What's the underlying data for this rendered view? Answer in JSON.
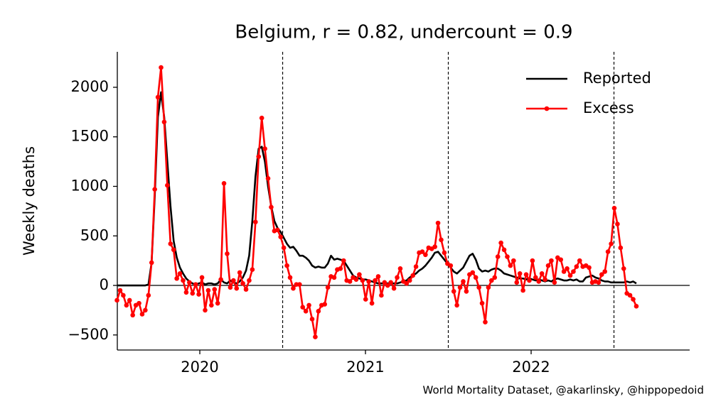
{
  "chart_data": {
    "type": "line",
    "title": "Belgium, r = 0.82, undercount = 0.9",
    "ylabel": "Weekly deaths",
    "footer": "World Mortality Dataset, @akarlinsky, @hippopedoid",
    "legend": "upper right",
    "xlim": [
      2019.502,
      2022.957
    ],
    "xticks": [
      2020,
      2021,
      2022
    ],
    "ylim": [
      -652,
      2358
    ],
    "yticks": [
      {
        "value": -500,
        "label": "−500"
      },
      0,
      500,
      1000,
      1500,
      2000
    ],
    "vlines": [
      2020.5,
      2021.5,
      2022.5
    ],
    "hline": 0,
    "x": [
      2019.5,
      2019.519,
      2019.538,
      2019.557,
      2019.576,
      2019.595,
      2019.614,
      2019.633,
      2019.652,
      2019.671,
      2019.69,
      2019.709,
      2019.728,
      2019.747,
      2019.766,
      2019.785,
      2019.804,
      2019.823,
      2019.842,
      2019.861,
      2019.88,
      2019.899,
      2019.918,
      2019.937,
      2019.956,
      2019.975,
      2019.994,
      2020.013,
      2020.032,
      2020.051,
      2020.07,
      2020.089,
      2020.108,
      2020.127,
      2020.146,
      2020.165,
      2020.184,
      2020.203,
      2020.222,
      2020.241,
      2020.26,
      2020.279,
      2020.298,
      2020.317,
      2020.336,
      2020.355,
      2020.374,
      2020.393,
      2020.412,
      2020.431,
      2020.45,
      2020.469,
      2020.488,
      2020.507,
      2020.526,
      2020.545,
      2020.564,
      2020.583,
      2020.602,
      2020.621,
      2020.64,
      2020.659,
      2020.678,
      2020.697,
      2020.716,
      2020.735,
      2020.754,
      2020.773,
      2020.792,
      2020.811,
      2020.83,
      2020.849,
      2020.868,
      2020.887,
      2020.906,
      2020.925,
      2020.944,
      2020.963,
      2020.982,
      2021.001,
      2021.02,
      2021.039,
      2021.058,
      2021.077,
      2021.096,
      2021.115,
      2021.134,
      2021.153,
      2021.172,
      2021.191,
      2021.21,
      2021.229,
      2021.248,
      2021.267,
      2021.286,
      2021.305,
      2021.324,
      2021.343,
      2021.362,
      2021.381,
      2021.4,
      2021.419,
      2021.438,
      2021.457,
      2021.476,
      2021.495,
      2021.514,
      2021.533,
      2021.552,
      2021.571,
      2021.59,
      2021.609,
      2021.628,
      2021.647,
      2021.666,
      2021.685,
      2021.704,
      2021.723,
      2021.742,
      2021.761,
      2021.78,
      2021.799,
      2021.818,
      2021.837,
      2021.856,
      2021.875,
      2021.894,
      2021.913,
      2021.932,
      2021.951,
      2021.97,
      2021.989,
      2022.008,
      2022.027,
      2022.046,
      2022.065,
      2022.084,
      2022.103,
      2022.122,
      2022.141,
      2022.16,
      2022.179,
      2022.198,
      2022.217,
      2022.236,
      2022.255,
      2022.274,
      2022.293,
      2022.312,
      2022.331,
      2022.35,
      2022.369,
      2022.388,
      2022.407,
      2022.426,
      2022.445,
      2022.464,
      2022.483,
      2022.502,
      2022.521,
      2022.54,
      2022.559,
      2022.578,
      2022.597,
      2022.616,
      2022.635
    ],
    "series": [
      {
        "name": "Reported",
        "color": "#000000",
        "markers": false,
        "values": [
          0,
          0,
          0,
          0,
          0,
          0,
          0,
          0,
          0,
          0,
          10,
          230,
          900,
          1700,
          1950,
          1700,
          1250,
          800,
          450,
          280,
          180,
          120,
          70,
          40,
          20,
          10,
          20,
          30,
          10,
          20,
          20,
          10,
          20,
          60,
          30,
          20,
          50,
          30,
          20,
          40,
          80,
          150,
          300,
          650,
          1100,
          1380,
          1400,
          1250,
          1000,
          800,
          650,
          580,
          540,
          480,
          420,
          380,
          390,
          350,
          300,
          300,
          280,
          250,
          200,
          180,
          190,
          180,
          180,
          220,
          300,
          260,
          270,
          260,
          250,
          200,
          150,
          100,
          80,
          70,
          60,
          60,
          50,
          40,
          30,
          20,
          20,
          20,
          20,
          20,
          20,
          20,
          30,
          40,
          50,
          80,
          100,
          120,
          150,
          170,
          200,
          240,
          280,
          330,
          340,
          300,
          260,
          220,
          180,
          140,
          120,
          150,
          180,
          240,
          300,
          320,
          260,
          170,
          140,
          150,
          140,
          160,
          170,
          170,
          150,
          120,
          110,
          100,
          90,
          80,
          70,
          70,
          60,
          70,
          60,
          50,
          60,
          50,
          40,
          50,
          40,
          60,
          70,
          60,
          50,
          50,
          60,
          50,
          60,
          40,
          40,
          80,
          90,
          100,
          80,
          70,
          50,
          40,
          40,
          30,
          30,
          30,
          30,
          30,
          40,
          30,
          40,
          20
        ]
      },
      {
        "name": "Excess",
        "color": "#ff0000",
        "markers": true,
        "values": [
          -150,
          -50,
          -100,
          -200,
          -150,
          -300,
          -200,
          -180,
          -290,
          -250,
          -100,
          230,
          970,
          1900,
          2200,
          1650,
          1010,
          420,
          360,
          70,
          120,
          50,
          -70,
          30,
          -80,
          10,
          -90,
          80,
          -250,
          -50,
          -200,
          -40,
          -180,
          60,
          1030,
          320,
          -20,
          50,
          -30,
          130,
          20,
          -40,
          50,
          160,
          640,
          1300,
          1690,
          1380,
          1080,
          790,
          550,
          560,
          490,
          380,
          200,
          80,
          -30,
          10,
          10,
          -220,
          -260,
          -200,
          -340,
          -520,
          -260,
          -200,
          -190,
          -20,
          90,
          80,
          160,
          170,
          250,
          50,
          40,
          80,
          60,
          110,
          50,
          -140,
          40,
          -180,
          50,
          90,
          -100,
          30,
          0,
          30,
          -30,
          80,
          170,
          40,
          20,
          50,
          100,
          190,
          330,
          340,
          310,
          380,
          370,
          390,
          630,
          460,
          330,
          220,
          200,
          -60,
          -200,
          -20,
          40,
          -60,
          110,
          130,
          80,
          -20,
          -180,
          -370,
          -20,
          50,
          80,
          290,
          430,
          360,
          290,
          200,
          250,
          30,
          120,
          -50,
          110,
          50,
          250,
          80,
          40,
          120,
          60,
          200,
          250,
          30,
          280,
          260,
          140,
          170,
          100,
          140,
          190,
          250,
          190,
          200,
          180,
          30,
          40,
          30,
          110,
          140,
          340,
          420,
          780,
          620,
          380,
          170,
          -80,
          -100,
          -140,
          -210
        ]
      }
    ]
  }
}
